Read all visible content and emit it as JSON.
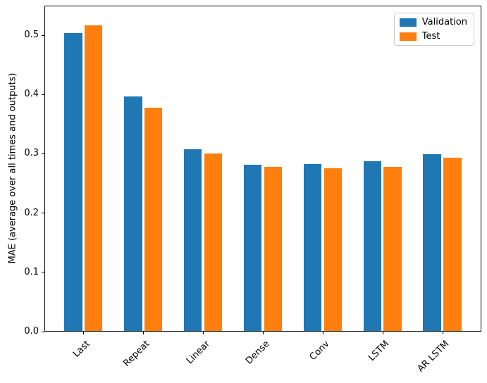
{
  "chart_data": {
    "type": "bar",
    "title": "",
    "categories": [
      "Last",
      "Repeat",
      "Linear",
      "Dense",
      "Conv",
      "LSTM",
      "AR LSTM"
    ],
    "series": [
      {
        "name": "Validation",
        "color": "#1f77b4",
        "values": [
          0.502,
          0.396,
          0.306,
          0.28,
          0.281,
          0.286,
          0.298
        ]
      },
      {
        "name": "Test",
        "color": "#ff7f0e",
        "values": [
          0.516,
          0.377,
          0.299,
          0.277,
          0.275,
          0.277,
          0.292
        ]
      }
    ],
    "xlabel": "",
    "ylabel": "MAE (average over all times and outputs)",
    "yticks": [
      0.0,
      0.1,
      0.2,
      0.3,
      0.4,
      0.5
    ],
    "ylim": [
      0,
      0.55
    ],
    "xtick_rotation_deg": 45,
    "bar_width_units": 0.3,
    "bar_offset_units": 0.17,
    "legend_position": "upper right",
    "grid": false,
    "background_color": "#ffffff",
    "spine_color": "#000000"
  }
}
